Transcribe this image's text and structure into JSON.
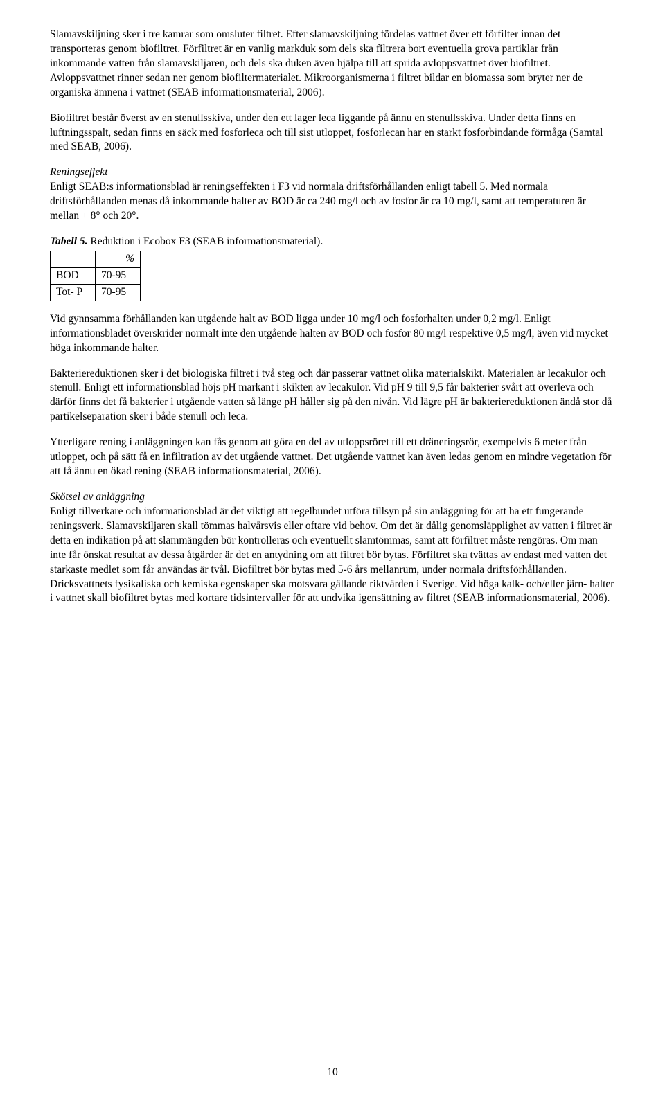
{
  "paragraphs": {
    "p1": "Slamavskiljning sker i tre kamrar som omsluter filtret. Efter slamavskiljning fördelas vattnet över ett förfilter innan det transporteras genom biofiltret. Förfiltret är en vanlig markduk som dels ska filtrera bort eventuella grova partiklar från inkommande vatten från slamavskiljaren, och dels ska duken även hjälpa till att sprida avloppsvattnet över biofiltret. Avloppsvattnet rinner sedan ner genom biofiltermaterialet. Mikroorganismerna i filtret bildar en biomassa som bryter ner de organiska ämnena i vattnet (SEAB informationsmaterial, 2006).",
    "p2": "Biofiltret består överst av en stenullsskiva, under den ett lager leca liggande på ännu en stenullsskiva. Under detta finns en luftningsspalt, sedan finns en säck med fosforleca och till sist utloppet, fosforlecan har en starkt fosforbindande förmåga (Samtal med SEAB, 2006).",
    "h1": "Reningseffekt",
    "p3": "Enligt SEAB:s informationsblad är reningseffekten i F3 vid normala driftsförhållanden enligt tabell 5. Med normala driftsförhållanden menas då inkommande halter av BOD är ca 240 mg/l och av fosfor är ca 10 mg/l, samt att temperaturen är mellan + 8° och 20°.",
    "table_caption_bold": "Tabell 5.",
    "table_caption_rest": "  Reduktion i Ecobox F3 (SEAB informationsmaterial).",
    "p4": "Vid gynnsamma förhållanden kan utgående halt av BOD ligga under 10 mg/l och fosforhalten under 0,2 mg/l. Enligt informationsbladet överskrider normalt inte den utgående halten av BOD och fosfor 80 mg/l respektive 0,5 mg/l, även vid mycket höga inkommande halter.",
    "p5": "Bakteriereduktionen sker i det biologiska filtret i två steg och där passerar vattnet olika materialskikt. Materialen är lecakulor och stenull. Enligt ett informationsblad höjs pH markant i skikten av lecakulor. Vid pH 9 till 9,5 får bakterier svårt att överleva och därför finns det få bakterier i utgående vatten så länge pH håller sig på den nivån. Vid lägre pH är bakteriereduktionen ändå stor då partikelseparation sker i både stenull och leca.",
    "p6": "Ytterligare rening i anläggningen kan fås genom att göra en del av utloppsröret till ett dräneringsrör, exempelvis 6 meter från utloppet, och på sätt få en infiltration av det utgående vattnet. Det utgående vattnet kan även ledas genom en mindre vegetation för att få ännu en ökad rening  (SEAB informationsmaterial, 2006).",
    "h2": "Skötsel av anläggning",
    "p7": "Enligt tillverkare och informationsblad är det viktigt att regelbundet utföra tillsyn på sin anläggning för att ha ett fungerande reningsverk. Slamavskiljaren skall tömmas halvårsvis eller oftare vid behov. Om det är dålig genomsläpplighet av vatten i filtret är detta en indikation på att slammängden bör kontrolleras och eventuellt slamtömmas, samt att förfiltret måste rengöras. Om man inte får önskat resultat av dessa åtgärder är det en antydning om att filtret bör bytas. Förfiltret ska tvättas av endast med vatten det starkaste medlet som får användas är tvål. Biofiltret bör bytas med 5-6 års mellanrum, under normala driftsförhållanden. Dricksvattnets fysikaliska och kemiska egenskaper ska motsvara gällande riktvärden i Sverige. Vid höga kalk- och/eller järn- halter i vattnet skall biofiltret bytas med kortare tidsintervaller för att undvika igensättning av filtret (SEAB informationsmaterial, 2006)."
  },
  "table": {
    "header": "%",
    "rows": [
      {
        "label": "BOD",
        "value": "70-95"
      },
      {
        "label": "Tot- P",
        "value": "70-95"
      }
    ]
  },
  "page_number": "10"
}
